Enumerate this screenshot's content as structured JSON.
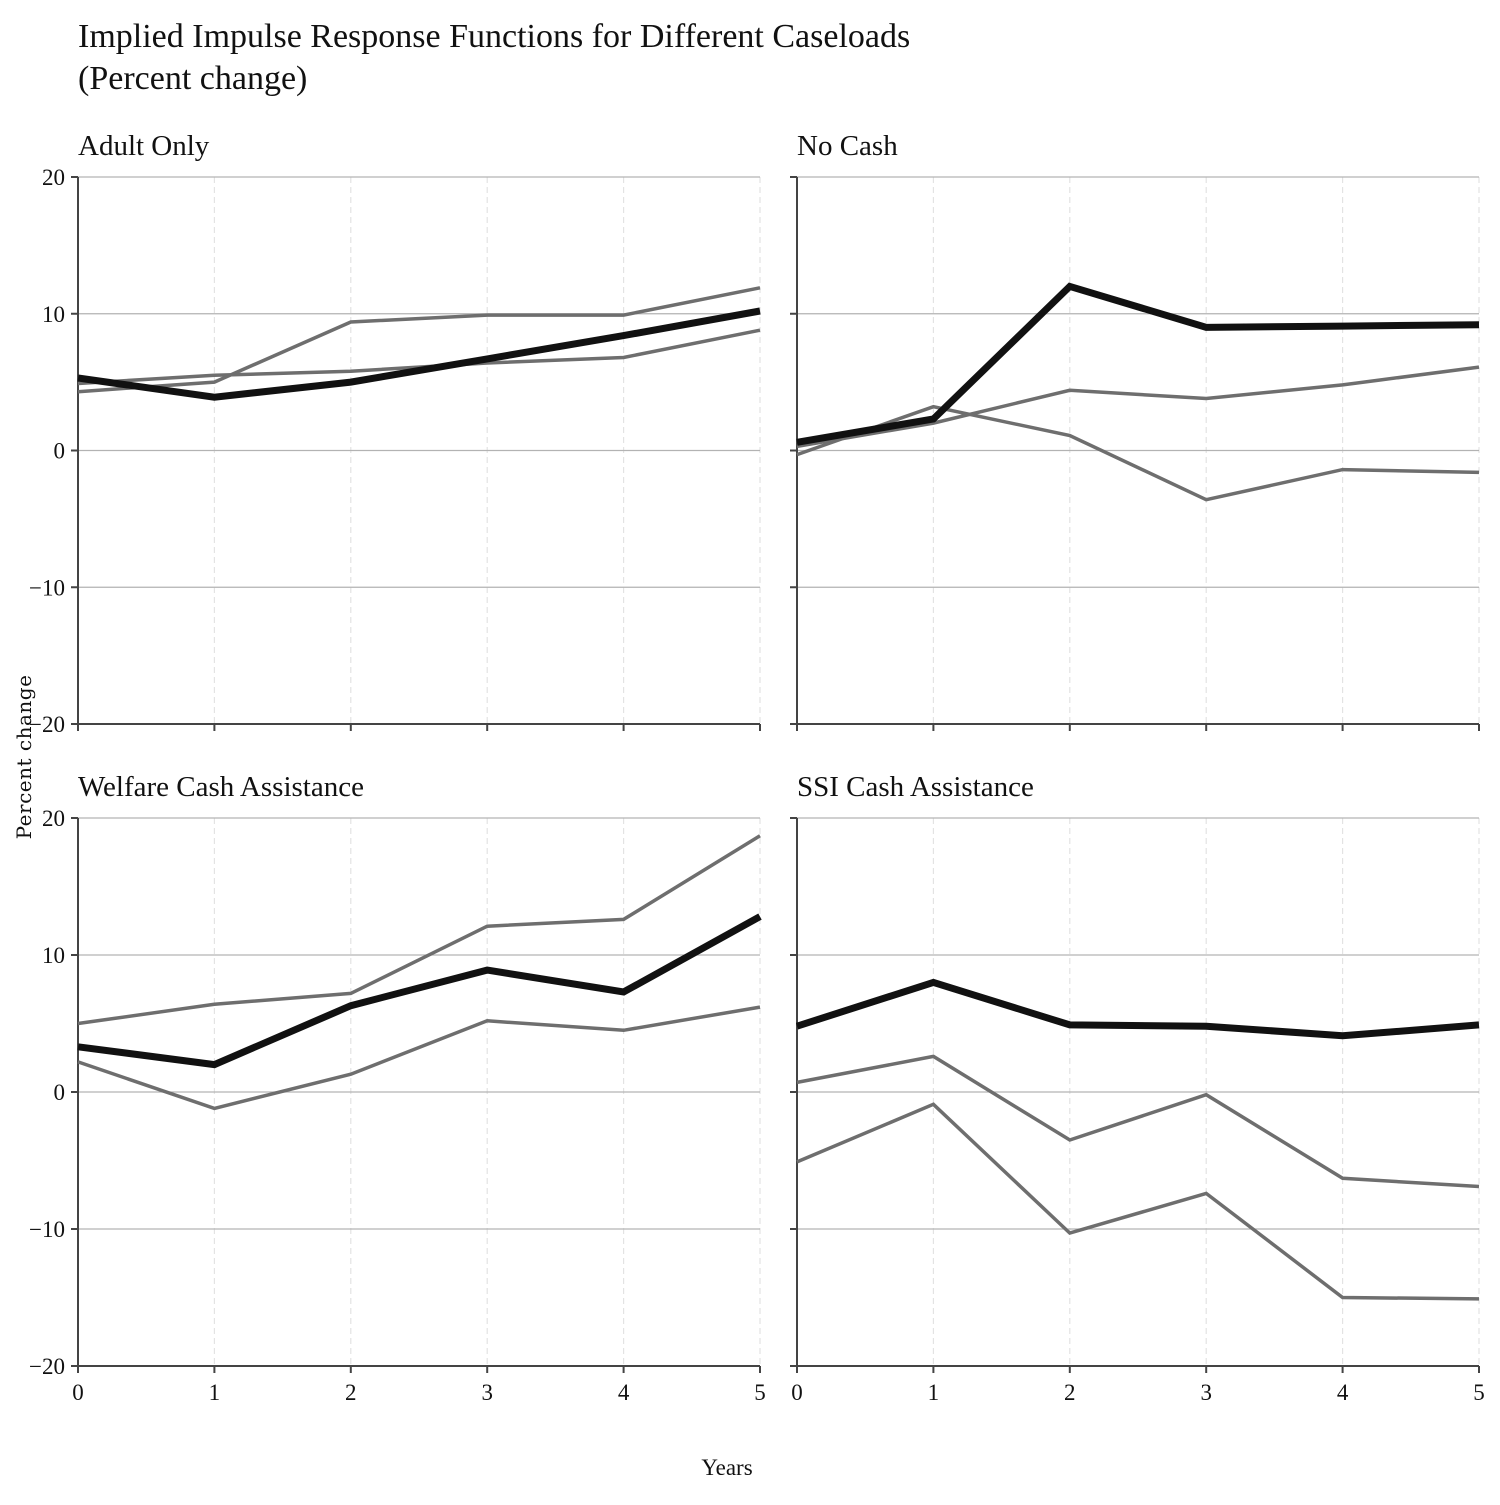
{
  "title": "Implied Impulse Response Functions for Different Caseloads",
  "subtitle": "(Percent change)",
  "xlabel": "Years",
  "ylabel": "Percent change",
  "chart_data": [
    {
      "type": "line",
      "title": "Adult Only",
      "x": [
        0,
        1,
        2,
        3,
        4,
        5
      ],
      "xlim": [
        0,
        5
      ],
      "ylim": [
        -20,
        20
      ],
      "yticks": [
        -20,
        -10,
        0,
        10,
        20
      ],
      "xticks": [
        0,
        1,
        2,
        3,
        4,
        5
      ],
      "grid": true,
      "series": [
        {
          "role": "upper",
          "values": [
            4.3,
            5.0,
            9.4,
            9.9,
            9.9,
            11.9
          ]
        },
        {
          "role": "lower",
          "values": [
            4.9,
            5.5,
            5.8,
            6.4,
            6.8,
            8.8
          ]
        },
        {
          "role": "point",
          "values": [
            5.3,
            3.9,
            5.0,
            6.7,
            8.4,
            10.2
          ]
        }
      ]
    },
    {
      "type": "line",
      "title": "No Cash",
      "x": [
        0,
        1,
        2,
        3,
        4,
        5
      ],
      "xlim": [
        0,
        5
      ],
      "ylim": [
        -20,
        20
      ],
      "yticks": [
        -20,
        -10,
        0,
        10,
        20
      ],
      "xticks": [
        0,
        1,
        2,
        3,
        4,
        5
      ],
      "grid": true,
      "series": [
        {
          "role": "upper",
          "values": [
            0.3,
            2.0,
            4.4,
            3.8,
            4.8,
            6.1
          ]
        },
        {
          "role": "lower",
          "values": [
            -0.3,
            3.2,
            1.1,
            -3.6,
            -1.4,
            -1.6
          ]
        },
        {
          "role": "point",
          "values": [
            0.6,
            2.3,
            12.0,
            9.0,
            9.1,
            9.2
          ]
        }
      ]
    },
    {
      "type": "line",
      "title": "Welfare Cash Assistance",
      "x": [
        0,
        1,
        2,
        3,
        4,
        5
      ],
      "xlim": [
        0,
        5
      ],
      "ylim": [
        -20,
        20
      ],
      "yticks": [
        -20,
        -10,
        0,
        10,
        20
      ],
      "xticks": [
        0,
        1,
        2,
        3,
        4,
        5
      ],
      "grid": true,
      "series": [
        {
          "role": "upper",
          "values": [
            5.0,
            6.4,
            7.2,
            12.1,
            12.6,
            18.7
          ]
        },
        {
          "role": "lower",
          "values": [
            2.2,
            -1.2,
            1.3,
            5.2,
            4.5,
            6.2
          ]
        },
        {
          "role": "point",
          "values": [
            3.3,
            2.0,
            6.3,
            8.9,
            7.3,
            12.8
          ]
        }
      ]
    },
    {
      "type": "line",
      "title": "SSI Cash Assistance",
      "x": [
        0,
        1,
        2,
        3,
        4,
        5
      ],
      "xlim": [
        0,
        5
      ],
      "ylim": [
        -20,
        20
      ],
      "yticks": [
        -20,
        -10,
        0,
        10,
        20
      ],
      "xticks": [
        0,
        1,
        2,
        3,
        4,
        5
      ],
      "grid": true,
      "series": [
        {
          "role": "upper",
          "values": [
            0.7,
            2.6,
            -3.5,
            -0.2,
            -6.3,
            -6.9
          ]
        },
        {
          "role": "lower",
          "values": [
            -5.1,
            -0.9,
            -10.3,
            -7.4,
            -15.0,
            -15.1
          ]
        },
        {
          "role": "point",
          "values": [
            4.8,
            8.0,
            4.9,
            4.8,
            4.1,
            4.9
          ]
        }
      ]
    }
  ],
  "colors": {
    "point_line": "#111111",
    "band_line": "#6e6e6e",
    "gridline_major": "#b3b3b3",
    "gridline_vertical": "#e3e3e3",
    "axis": "#444444"
  }
}
